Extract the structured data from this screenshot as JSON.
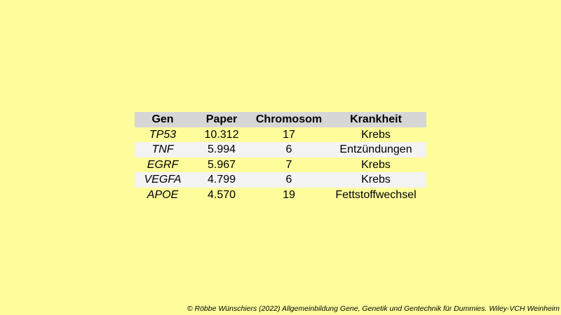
{
  "table": {
    "headers": {
      "gen": "Gen",
      "paper": "Paper",
      "chromosom": "Chromosom",
      "krankheit": "Krankheit"
    },
    "rows": [
      {
        "gen": "TP53",
        "paper": "10.312",
        "chromosom": "17",
        "krankheit": "Krebs"
      },
      {
        "gen": "TNF",
        "paper": "5.994",
        "chromosom": "6",
        "krankheit": "Entzündungen"
      },
      {
        "gen": "EGRF",
        "paper": "5.967",
        "chromosom": "7",
        "krankheit": "Krebs"
      },
      {
        "gen": "VEGFA",
        "paper": "4.799",
        "chromosom": "6",
        "krankheit": "Krebs"
      },
      {
        "gen": "APOE",
        "paper": "4.570",
        "chromosom": "19",
        "krankheit": "Fettstoffwechsel"
      }
    ]
  },
  "footer": {
    "credit": "© Röbbe Wünschiers (2022) Allgemeinbildung Gene, Genetik und Gentechnik für Dummies. Wiley-VCH Weinheim"
  }
}
